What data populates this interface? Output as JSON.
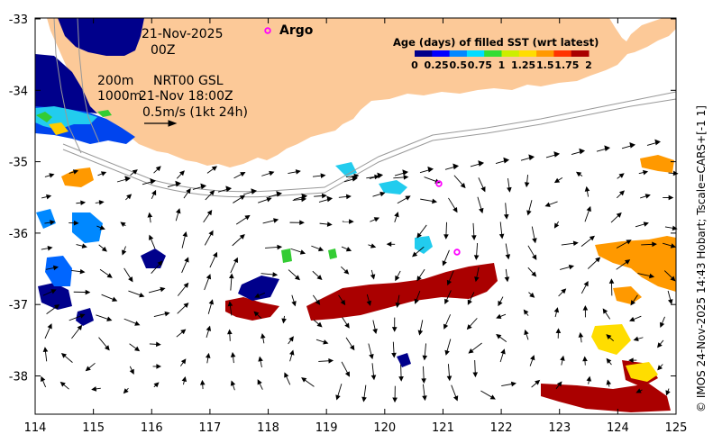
{
  "map": {
    "land_color": "#fcc998",
    "axes": {
      "x_ticks": [
        "114",
        "115",
        "116",
        "117",
        "118",
        "119",
        "120",
        "121",
        "122",
        "123",
        "124",
        "125"
      ],
      "y_ticks": [
        "-33",
        "-34",
        "-35",
        "-36",
        "-37",
        "-38"
      ]
    },
    "date": "21-Nov-2025",
    "hour": "00Z",
    "depth_200": "200m",
    "depth_1000": "1000m",
    "product": "NRT00 GSL",
    "product_time": "21-Nov 18:00Z",
    "velocity_scale": "0.5m/s (1kt 24h)",
    "argo_label": "Argo",
    "argo_color": "#ff00ff",
    "legend": {
      "title": "Age (days) of filled SST (wrt latest)",
      "ticks": [
        "0",
        "0.25",
        "0.5",
        "0.75",
        "1",
        "1.25",
        "1.5",
        "1.75",
        "2"
      ],
      "colors": [
        "#00008b",
        "#0000ff",
        "#0088ff",
        "#00ddff",
        "#33dd33",
        "#ccee00",
        "#ffdd00",
        "#ff9900",
        "#ff3300",
        "#aa0000"
      ]
    },
    "credit": "© IMOS 24-Nov-2025 14:43 Hobart; Tscale=CARS+[-1 1]"
  }
}
